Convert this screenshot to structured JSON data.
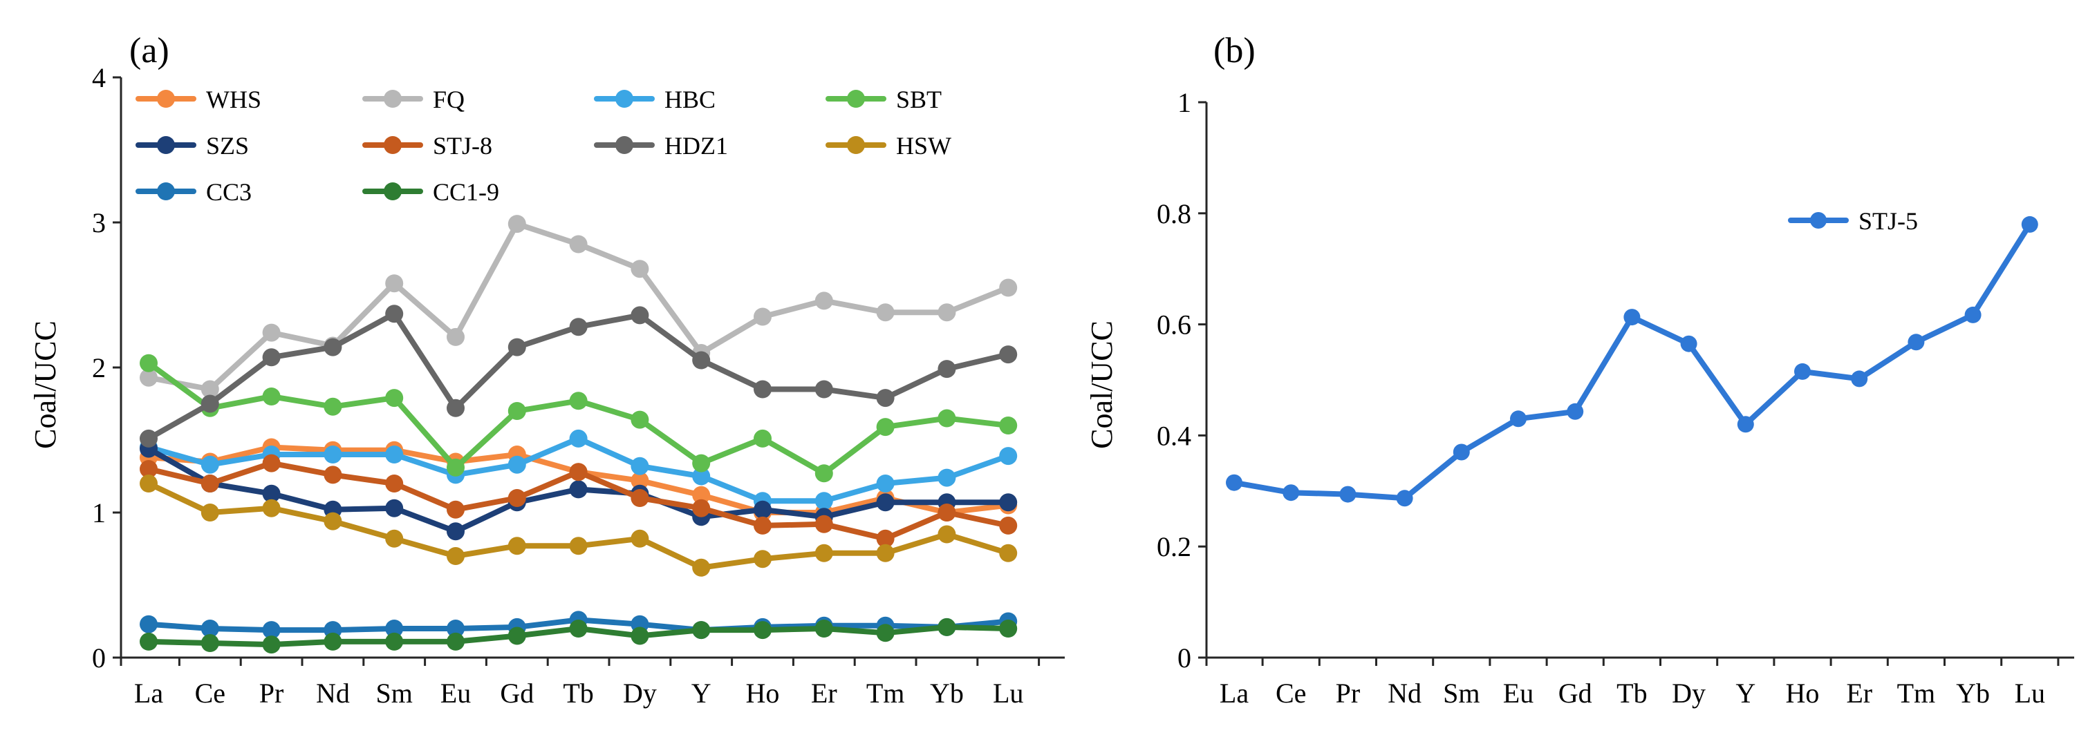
{
  "chart_data": [
    {
      "panel_label": "(a)",
      "type": "line",
      "title": "",
      "xlabel": "",
      "ylabel": "Coal/UCC",
      "ylim": [
        0,
        4
      ],
      "yticks": [
        0,
        1,
        2,
        3,
        4
      ],
      "ytick_labels": [
        "0",
        "1",
        "2",
        "3",
        "4"
      ],
      "grid": false,
      "legend_position": "top",
      "categories": [
        "La",
        "Ce",
        "Pr",
        "Nd",
        "Sm",
        "Eu",
        "Gd",
        "Tb",
        "Dy",
        "Y",
        "Ho",
        "Er",
        "Tm",
        "Yb",
        "Lu"
      ],
      "series": [
        {
          "name": "WHS",
          "color": "#f4883f",
          "values": [
            1.38,
            1.35,
            1.45,
            1.43,
            1.43,
            1.35,
            1.4,
            1.28,
            1.22,
            1.12,
            1.0,
            1.0,
            1.1,
            1.0,
            1.05
          ]
        },
        {
          "name": "FQ",
          "color": "#b7b7b7",
          "values": [
            1.93,
            1.85,
            2.24,
            2.15,
            2.58,
            2.21,
            2.99,
            2.85,
            2.68,
            2.1,
            2.35,
            2.46,
            2.38,
            2.38,
            2.55
          ]
        },
        {
          "name": "HBC",
          "color": "#3ba6e5",
          "values": [
            1.45,
            1.33,
            1.4,
            1.4,
            1.4,
            1.26,
            1.33,
            1.51,
            1.32,
            1.25,
            1.08,
            1.08,
            1.2,
            1.24,
            1.39
          ]
        },
        {
          "name": "SBT",
          "color": "#5fbd4e",
          "values": [
            2.03,
            1.72,
            1.8,
            1.73,
            1.79,
            1.31,
            1.7,
            1.77,
            1.64,
            1.34,
            1.51,
            1.27,
            1.59,
            1.65,
            1.6
          ]
        },
        {
          "name": "SZS",
          "color": "#1d3f77",
          "values": [
            1.44,
            1.2,
            1.13,
            1.02,
            1.03,
            0.87,
            1.07,
            1.16,
            1.13,
            0.97,
            1.02,
            0.97,
            1.07,
            1.07,
            1.07
          ]
        },
        {
          "name": "STJ-8",
          "color": "#c55a1e",
          "values": [
            1.3,
            1.2,
            1.34,
            1.26,
            1.2,
            1.02,
            1.1,
            1.28,
            1.1,
            1.03,
            0.91,
            0.92,
            0.82,
            1.0,
            0.91
          ]
        },
        {
          "name": "HDZ1",
          "color": "#666666",
          "values": [
            1.51,
            1.75,
            2.07,
            2.14,
            2.37,
            1.72,
            2.14,
            2.28,
            2.36,
            2.05,
            1.85,
            1.85,
            1.79,
            1.99,
            2.09
          ]
        },
        {
          "name": "HSW",
          "color": "#bd8c1a",
          "values": [
            1.2,
            1.0,
            1.03,
            0.94,
            0.82,
            0.7,
            0.77,
            0.77,
            0.82,
            0.62,
            0.68,
            0.72,
            0.72,
            0.85,
            0.72
          ]
        },
        {
          "name": "CC3",
          "color": "#1f74b4",
          "values": [
            0.23,
            0.2,
            0.19,
            0.19,
            0.2,
            0.2,
            0.21,
            0.26,
            0.23,
            0.19,
            0.21,
            0.22,
            0.22,
            0.21,
            0.25
          ]
        },
        {
          "name": "CC1-9",
          "color": "#2e7d32",
          "values": [
            0.11,
            0.1,
            0.09,
            0.11,
            0.11,
            0.11,
            0.15,
            0.2,
            0.15,
            0.19,
            0.19,
            0.2,
            0.17,
            0.21,
            0.2
          ]
        }
      ]
    },
    {
      "panel_label": "(b)",
      "type": "line",
      "title": "",
      "xlabel": "",
      "ylabel": "Coal/UCC",
      "ylim": [
        0,
        1
      ],
      "yticks": [
        0,
        0.2,
        0.4,
        0.6,
        0.8,
        1
      ],
      "ytick_labels": [
        "0",
        "0.2",
        "0.4",
        "0.6",
        "0.8",
        "1"
      ],
      "grid": false,
      "legend_position": "top-right",
      "categories": [
        "La",
        "Ce",
        "Pr",
        "Nd",
        "Sm",
        "Eu",
        "Gd",
        "Tb",
        "Dy",
        "Y",
        "Ho",
        "Er",
        "Tm",
        "Yb",
        "Lu"
      ],
      "series": [
        {
          "name": "STJ-5",
          "color": "#2f78d5",
          "values": [
            0.315,
            0.297,
            0.294,
            0.287,
            0.37,
            0.43,
            0.443,
            0.613,
            0.565,
            0.42,
            0.515,
            0.502,
            0.568,
            0.617,
            0.78
          ]
        }
      ]
    }
  ]
}
